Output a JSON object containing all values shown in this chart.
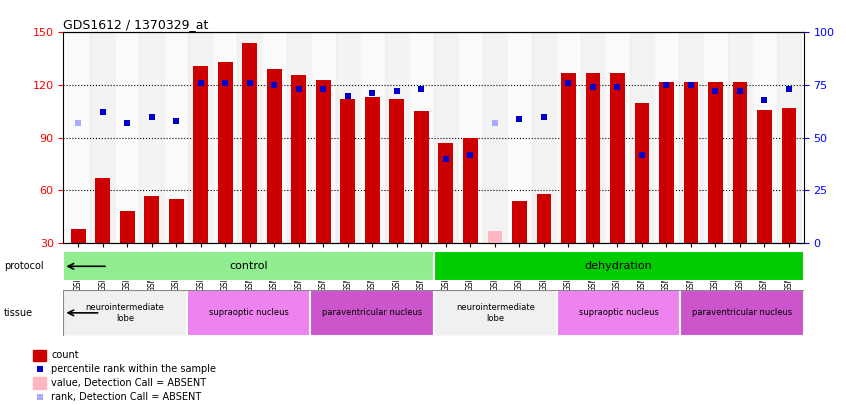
{
  "title": "GDS1612 / 1370329_at",
  "samples": [
    "GSM69787",
    "GSM69788",
    "GSM69789",
    "GSM69790",
    "GSM69791",
    "GSM69461",
    "GSM69462",
    "GSM69463",
    "GSM69464",
    "GSM69465",
    "GSM69475",
    "GSM69476",
    "GSM69477",
    "GSM69478",
    "GSM69479",
    "GSM69782",
    "GSM69783",
    "GSM69784",
    "GSM69785",
    "GSM69786",
    "GSM69268",
    "GSM69457",
    "GSM69458",
    "GSM69459",
    "GSM69460",
    "GSM69470",
    "GSM69471",
    "GSM69472",
    "GSM69473",
    "GSM69474"
  ],
  "count_values": [
    38,
    67,
    48,
    57,
    55,
    131,
    133,
    144,
    129,
    126,
    123,
    112,
    113,
    112,
    105,
    87,
    90,
    37,
    54,
    58,
    127,
    127,
    127,
    110,
    122,
    122,
    122,
    122,
    106,
    107
  ],
  "rank_values": [
    57,
    62,
    57,
    60,
    58,
    76,
    76,
    76,
    75,
    73,
    73,
    70,
    71,
    72,
    73,
    40,
    42,
    57,
    59,
    60,
    76,
    74,
    74,
    42,
    75,
    75,
    72,
    72,
    68,
    73
  ],
  "absent_count": [
    0,
    0,
    0,
    0,
    0,
    0,
    0,
    0,
    0,
    0,
    0,
    0,
    0,
    0,
    0,
    0,
    0,
    1,
    0,
    0,
    0,
    0,
    0,
    0,
    0,
    0,
    0,
    0,
    0,
    0
  ],
  "absent_rank": [
    1,
    0,
    0,
    0,
    0,
    0,
    0,
    0,
    0,
    0,
    0,
    0,
    0,
    0,
    0,
    0,
    0,
    1,
    0,
    0,
    0,
    0,
    0,
    0,
    0,
    0,
    0,
    0,
    0,
    0
  ],
  "protocol_groups": [
    {
      "label": "control",
      "start": 0,
      "end": 15,
      "color": "#90ee90"
    },
    {
      "label": "dehydration",
      "start": 15,
      "end": 30,
      "color": "#00cc00"
    }
  ],
  "tissue_groups": [
    {
      "label": "neurointermediate\nlobe",
      "start": 0,
      "end": 5,
      "color": "#f0f0f0"
    },
    {
      "label": "supraoptic nucleus",
      "start": 5,
      "end": 10,
      "color": "#ee82ee"
    },
    {
      "label": "paraventricular nucleus",
      "start": 10,
      "end": 15,
      "color": "#cc55cc"
    },
    {
      "label": "neurointermediate\nlobe",
      "start": 15,
      "end": 20,
      "color": "#f0f0f0"
    },
    {
      "label": "supraoptic nucleus",
      "start": 20,
      "end": 25,
      "color": "#ee82ee"
    },
    {
      "label": "paraventricular nucleus",
      "start": 25,
      "end": 30,
      "color": "#cc55cc"
    }
  ],
  "ylim_left": [
    30,
    150
  ],
  "ylim_right": [
    0,
    100
  ],
  "yticks_left": [
    30,
    60,
    90,
    120,
    150
  ],
  "yticks_right": [
    0,
    25,
    50,
    75,
    100
  ],
  "bar_color": "#cc0000",
  "bar_absent_color": "#ffb6c1",
  "rank_color": "#0000cc",
  "rank_absent_color": "#aaaaff",
  "grid_color": "#000000"
}
